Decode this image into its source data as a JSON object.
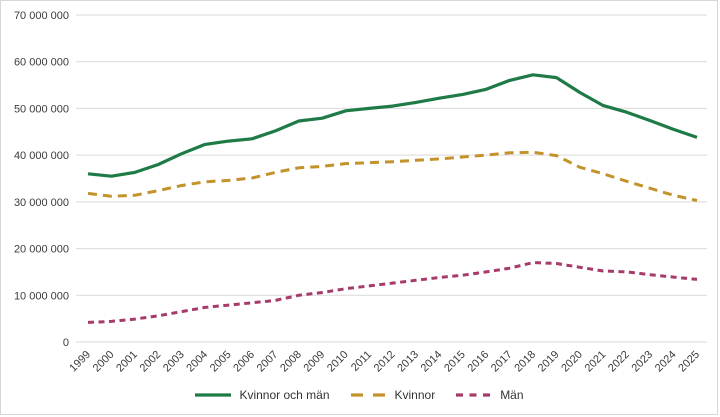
{
  "chart_data": {
    "type": "line",
    "x": [
      "1999",
      "2000",
      "2001",
      "2002",
      "2003",
      "2004",
      "2005",
      "2006",
      "2007",
      "2008",
      "2009",
      "2010",
      "2011",
      "2012",
      "2013",
      "2014",
      "2015",
      "2016",
      "2017",
      "2018",
      "2019",
      "2020",
      "2021",
      "2022",
      "2023",
      "2024",
      "2025"
    ],
    "series": [
      {
        "name": "Kvinnor och män",
        "color": "#1e7b46",
        "dash": "",
        "values": [
          36000000,
          35500000,
          36300000,
          38000000,
          40300000,
          42300000,
          43000000,
          43500000,
          45200000,
          47300000,
          47900000,
          49500000,
          50000000,
          50500000,
          51300000,
          52200000,
          53000000,
          54100000,
          56000000,
          57200000,
          56600000,
          53400000,
          50600000,
          49200000,
          47400000,
          45500000,
          43800000
        ]
      },
      {
        "name": "Kvinnor",
        "color": "#c3932b",
        "dash": "9 6",
        "values": [
          31800000,
          31200000,
          31400000,
          32400000,
          33500000,
          34300000,
          34600000,
          35100000,
          36300000,
          37300000,
          37600000,
          38200000,
          38400000,
          38600000,
          38900000,
          39200000,
          39600000,
          40000000,
          40500000,
          40600000,
          39900000,
          37400000,
          36000000,
          34400000,
          32900000,
          31400000,
          30300000
        ]
      },
      {
        "name": "Män",
        "color": "#a63a6b",
        "dash": "6 4.5",
        "values": [
          4200000,
          4400000,
          4900000,
          5600000,
          6500000,
          7400000,
          7900000,
          8400000,
          8900000,
          10000000,
          10600000,
          11400000,
          12000000,
          12600000,
          13200000,
          13800000,
          14300000,
          15000000,
          15800000,
          17000000,
          16800000,
          16000000,
          15200000,
          15000000,
          14400000,
          13900000,
          13400000
        ]
      }
    ],
    "y_axis": {
      "min": 0,
      "max": 70000000,
      "step": 10000000,
      "tick_labels": [
        "0",
        "10 000 000",
        "20 000 000",
        "30 000 000",
        "40 000 000",
        "50 000 000",
        "60 000 000",
        "70 000 000"
      ]
    },
    "grid": "horizontal",
    "legend_position": "bottom-center",
    "colors": {
      "grid": "#d9d9d9",
      "tick_text": "#3b3b3b",
      "frame_border": "#d6d6d6"
    }
  }
}
